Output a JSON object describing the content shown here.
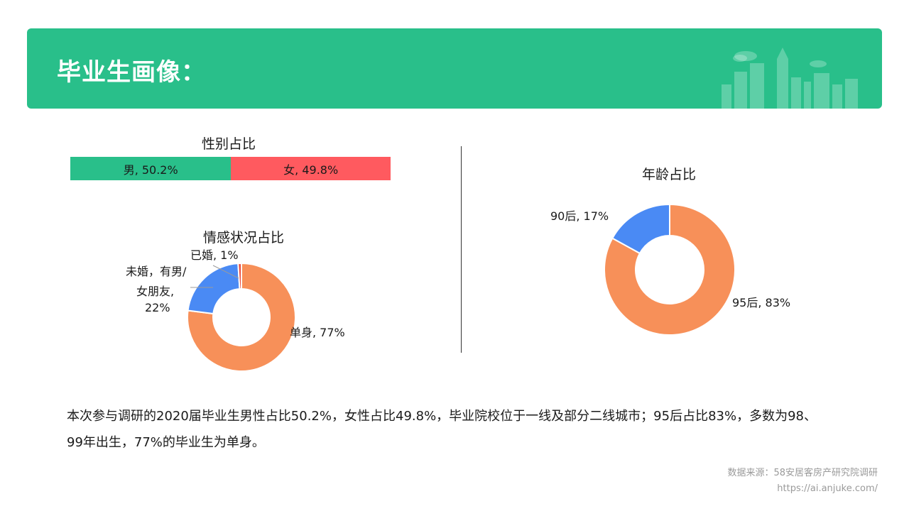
{
  "header": {
    "title": "毕业生画像："
  },
  "chart_data": [
    {
      "type": "bar",
      "stacked": true,
      "orientation": "horizontal",
      "title": "性别占比",
      "categories": [
        "男",
        "女"
      ],
      "values": [
        50.2,
        49.8
      ],
      "labels": [
        "男, 50.2%",
        "女, 49.8%"
      ],
      "colors": [
        "#29bf8a",
        "#ff5a5f"
      ]
    },
    {
      "type": "pie",
      "donut": true,
      "title": "情感状况占比",
      "categories": [
        "单身",
        "未婚，有男/女朋友",
        "已婚"
      ],
      "values": [
        77,
        22,
        1
      ],
      "labels": [
        "单身, 77%",
        "未婚，有男/女朋友, 22%",
        "已婚, 1%"
      ],
      "label_lines": {
        "married": "已婚, 1%",
        "dating_1": "未婚，有男/",
        "dating_2": "女朋友,",
        "dating_3": "22%",
        "single": "单身, 77%"
      },
      "colors": [
        "#f79059",
        "#4a8af4",
        "#e94b3c"
      ]
    },
    {
      "type": "pie",
      "donut": true,
      "title": "年龄占比",
      "categories": [
        "95后",
        "90后"
      ],
      "values": [
        83,
        17
      ],
      "labels": [
        "95后, 83%",
        "90后, 17%"
      ],
      "colors": [
        "#f79059",
        "#4a8af4"
      ]
    }
  ],
  "summary": {
    "line1": "本次参与调研的2020届毕业生男性占比50.2%，女性占比49.8%，毕业院校位于一线及部分二线城市；95后占比83%，多数为98、",
    "line2": "99年出生，77%的毕业生为单身。"
  },
  "source": {
    "line1": "数据来源：58安居客房产研究院调研",
    "line2": "https://ai.anjuke.com/"
  }
}
